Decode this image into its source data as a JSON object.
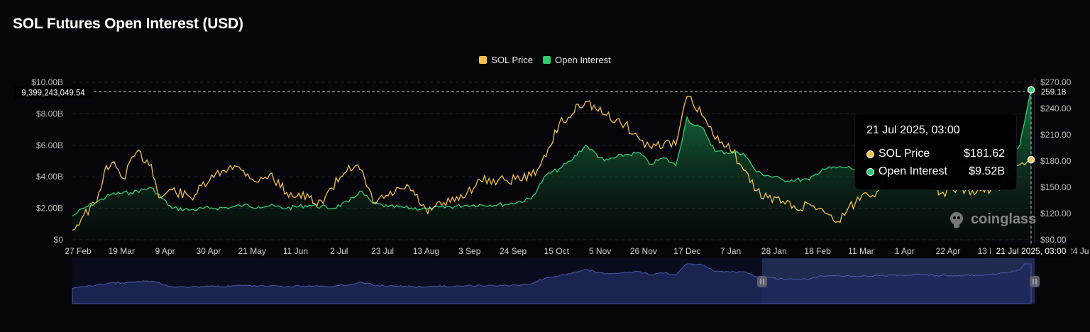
{
  "title": "SOL Futures Open Interest (USD)",
  "legend": [
    {
      "label": "SOL Price",
      "color": "#f0c14b"
    },
    {
      "label": "Open Interest",
      "color": "#2ecc71"
    }
  ],
  "colors": {
    "price": "#f0c14b",
    "oi": "#2ecc71",
    "background": "#06060a",
    "navigator": "#4a5aa8"
  },
  "crosshair": {
    "left_label": "9,399,243,049.54",
    "right_label": "259.18",
    "x_label": "21 Jul 2025, 03:00"
  },
  "tooltip": {
    "date": "21 Jul 2025, 03:00",
    "rows": [
      {
        "name": "SOL Price",
        "value": "$181.62",
        "color": "#f0c14b"
      },
      {
        "name": "Open Interest",
        "value": "$9.52B",
        "color": "#2ecc71"
      }
    ]
  },
  "watermark": "coinglass",
  "chart_data": {
    "type": "line",
    "title": "SOL Futures Open Interest (USD)",
    "x_ticks": [
      "27 Feb",
      "19 Mar",
      "9 Apr",
      "30 Apr",
      "21 May",
      "11 Jun",
      "2 Jul",
      "23 Jul",
      "13 Aug",
      "3 Sep",
      "24 Sep",
      "15 Oct",
      "5 Nov",
      "26 Nov",
      "17 Dec",
      "7 Jan",
      "28 Jan",
      "18 Feb",
      "11 Mar",
      "1 Apr",
      "22 Apr",
      "13 May",
      "3 Jun",
      "24 Ju"
    ],
    "y_left_ticks": [
      "$0",
      "$2.00B",
      "$4.00B",
      "$6.00B",
      "$8.00B",
      "$10.00B"
    ],
    "y_right_ticks": [
      "$90.00",
      "$120.00",
      "$150.00",
      "$180.00",
      "$210.00",
      "$240.00",
      "$270.00"
    ],
    "y_left_range": [
      0,
      10000000000
    ],
    "y_right_range": [
      90,
      270
    ],
    "legend_position": "top-center",
    "grid": true,
    "series": [
      {
        "name": "SOL Price",
        "axis": "right",
        "x": [
          "2024-02-27",
          "2024-03-04",
          "2024-03-11",
          "2024-03-15",
          "2024-03-19",
          "2024-03-25",
          "2024-04-01",
          "2024-04-09",
          "2024-04-13",
          "2024-04-20",
          "2024-04-30",
          "2024-05-10",
          "2024-05-21",
          "2024-05-28",
          "2024-06-05",
          "2024-06-11",
          "2024-06-20",
          "2024-07-02",
          "2024-07-06",
          "2024-07-14",
          "2024-07-23",
          "2024-07-29",
          "2024-08-05",
          "2024-08-13",
          "2024-08-24",
          "2024-09-03",
          "2024-09-07",
          "2024-09-15",
          "2024-09-24",
          "2024-10-01",
          "2024-10-15",
          "2024-10-28",
          "2024-11-05",
          "2024-11-12",
          "2024-11-18",
          "2024-11-22",
          "2024-11-26",
          "2024-12-06",
          "2024-12-17",
          "2024-12-25",
          "2024-12-30",
          "2025-01-07",
          "2025-01-13",
          "2025-01-19",
          "2025-01-22",
          "2025-01-28",
          "2025-02-03",
          "2025-02-10",
          "2025-02-18",
          "2025-02-25",
          "2025-03-03",
          "2025-03-11",
          "2025-03-18",
          "2025-03-25",
          "2025-04-01",
          "2025-04-08",
          "2025-04-14",
          "2025-04-22",
          "2025-04-30",
          "2025-05-06",
          "2025-05-13",
          "2025-05-23",
          "2025-06-03",
          "2025-06-13",
          "2025-06-22",
          "2025-06-24",
          "2025-07-03",
          "2025-07-11",
          "2025-07-15",
          "2025-07-21"
        ],
        "values": [
          101,
          118,
          133,
          168,
          178,
          160,
          190,
          176,
          138,
          147,
          138,
          158,
          175,
          169,
          156,
          165,
          144,
          138,
          128,
          149,
          175,
          170,
          133,
          140,
          151,
          120,
          128,
          133,
          144,
          158,
          158,
          163,
          185,
          223,
          230,
          245,
          248,
          233,
          222,
          204,
          197,
          201,
          198,
          254,
          246,
          230,
          205,
          200,
          170,
          146,
          138,
          134,
          125,
          131,
          125,
          110,
          123,
          141,
          145,
          168,
          169,
          172,
          143,
          148,
          144,
          146,
          150,
          165,
          176,
          181.62
        ]
      },
      {
        "name": "Open Interest",
        "axis": "left",
        "x": [
          "2024-02-27",
          "2024-03-04",
          "2024-03-11",
          "2024-03-19",
          "2024-03-29",
          "2024-04-09",
          "2024-04-20",
          "2024-04-30",
          "2024-05-10",
          "2024-05-21",
          "2024-05-28",
          "2024-06-05",
          "2024-06-11",
          "2024-06-20",
          "2024-07-02",
          "2024-07-14",
          "2024-07-23",
          "2024-07-29",
          "2024-08-05",
          "2024-08-13",
          "2024-09-03",
          "2024-09-24",
          "2024-10-15",
          "2024-10-28",
          "2024-11-05",
          "2024-11-12",
          "2024-11-18",
          "2024-11-26",
          "2024-12-06",
          "2024-12-17",
          "2024-12-25",
          "2024-12-30",
          "2025-01-07",
          "2025-01-13",
          "2025-01-19",
          "2025-01-22",
          "2025-01-28",
          "2025-02-03",
          "2025-02-18",
          "2025-02-25",
          "2025-03-11",
          "2025-03-25",
          "2025-04-01",
          "2025-04-14",
          "2025-04-22",
          "2025-05-01",
          "2025-05-13",
          "2025-05-23",
          "2025-06-03",
          "2025-06-13",
          "2025-06-24",
          "2025-07-03",
          "2025-07-11",
          "2025-07-15",
          "2025-07-21"
        ],
        "values": [
          1500000000,
          2000000000,
          2400000000,
          2900000000,
          3000000000,
          3300000000,
          2000000000,
          1900000000,
          2000000000,
          2050000000,
          2200000000,
          2100000000,
          2150000000,
          2000000000,
          2200000000,
          2000000000,
          2400000000,
          3100000000,
          2300000000,
          2100000000,
          1950000000,
          2200000000,
          2250000000,
          2600000000,
          4100000000,
          4500000000,
          5000000000,
          6000000000,
          5000000000,
          5400000000,
          5500000000,
          4800000000,
          5200000000,
          4700000000,
          7800000000,
          7300000000,
          7000000000,
          5600000000,
          5500000000,
          4300000000,
          3800000000,
          3800000000,
          4500000000,
          4600000000,
          4400000000,
          4600000000,
          4700000000,
          4800000000,
          4600000000,
          4600000000,
          4700000000,
          5000000000,
          5600000000,
          6000000000,
          9520000000
        ]
      }
    ]
  }
}
